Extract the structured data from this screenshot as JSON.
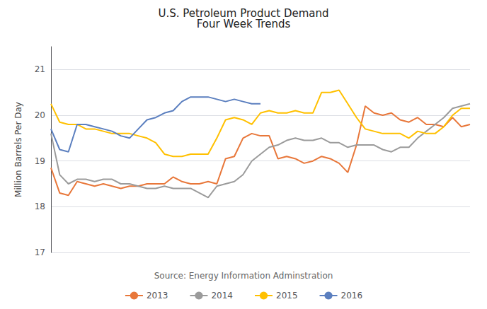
{
  "chart_data": {
    "type": "line",
    "title": "U.S. Petroleum Product Demand\nFour Week Trends",
    "y_label": "Million Barrels Per Day",
    "annotation": "Source: Energy Information Adminstration",
    "categories": [
      null,
      null,
      null,
      null,
      null,
      null,
      null,
      null,
      null,
      null,
      null,
      null,
      null,
      null,
      null,
      null,
      null,
      null,
      null,
      null,
      null,
      null,
      null,
      null,
      null,
      null,
      null,
      null,
      null,
      null,
      null,
      null,
      null,
      null,
      null,
      null,
      null,
      null,
      null,
      null,
      null,
      null,
      null,
      null,
      null,
      null,
      null,
      null,
      null
    ],
    "series": [
      {
        "name": "2013",
        "color": "#E8773A",
        "values": [
          18.85,
          18.3,
          18.25,
          18.55,
          18.5,
          18.45,
          18.5,
          18.45,
          18.4,
          18.45,
          18.45,
          18.5,
          18.5,
          18.5,
          18.65,
          18.55,
          18.5,
          18.5,
          18.55,
          18.5,
          19.05,
          19.1,
          19.5,
          19.6,
          19.55,
          19.55,
          19.05,
          19.1,
          19.05,
          18.95,
          19.0,
          19.1,
          19.05,
          18.95,
          18.75,
          19.35,
          20.2,
          20.05,
          20.0,
          20.05,
          19.9,
          19.85,
          19.95,
          19.8,
          19.8,
          19.75,
          19.95,
          19.75,
          19.8
        ]
      },
      {
        "name": "2014",
        "color": "#9B9B9B",
        "values": [
          19.6,
          18.7,
          18.5,
          18.6,
          18.6,
          18.55,
          18.6,
          18.6,
          18.5,
          18.5,
          18.45,
          18.4,
          18.4,
          18.45,
          18.4,
          18.4,
          18.4,
          18.3,
          18.2,
          18.45,
          18.5,
          18.55,
          18.7,
          19.0,
          19.15,
          19.3,
          19.35,
          19.45,
          19.5,
          19.45,
          19.45,
          19.5,
          19.4,
          19.4,
          19.3,
          19.35,
          19.35,
          19.35,
          19.25,
          19.2,
          19.3,
          19.3,
          19.5,
          19.65,
          19.8,
          19.95,
          20.15,
          20.2,
          20.25
        ]
      },
      {
        "name": "2015",
        "color": "#FFC000",
        "values": [
          20.25,
          19.85,
          19.8,
          19.8,
          19.7,
          19.7,
          19.65,
          19.6,
          19.6,
          19.6,
          19.55,
          19.5,
          19.4,
          19.15,
          19.1,
          19.1,
          19.15,
          19.15,
          19.15,
          19.5,
          19.9,
          19.95,
          19.9,
          19.8,
          20.05,
          20.1,
          20.05,
          20.05,
          20.1,
          20.05,
          20.05,
          20.5,
          20.5,
          20.55,
          20.25,
          19.95,
          19.7,
          19.65,
          19.6,
          19.6,
          19.6,
          19.5,
          19.65,
          19.6,
          19.6,
          19.75,
          20.0,
          20.15,
          20.15
        ]
      },
      {
        "name": "2016",
        "color": "#5B7FBF",
        "values": [
          19.7,
          19.25,
          19.2,
          19.8,
          19.8,
          19.75,
          19.7,
          19.65,
          19.55,
          19.5,
          19.7,
          19.9,
          19.95,
          20.05,
          20.1,
          20.3,
          20.4,
          20.4,
          20.4,
          20.35,
          20.3,
          20.35,
          20.3,
          20.25,
          20.25,
          null,
          null,
          null,
          null,
          null,
          null,
          null,
          null,
          null,
          null,
          null,
          null,
          null,
          null,
          null,
          null,
          null,
          null,
          null,
          null,
          null,
          null,
          null,
          null
        ]
      }
    ],
    "ylim": [
      17,
      21.5
    ],
    "yticks": [
      17,
      18,
      19,
      20,
      21
    ],
    "grid": true,
    "legend": "bottom",
    "tick_labels": "y"
  }
}
